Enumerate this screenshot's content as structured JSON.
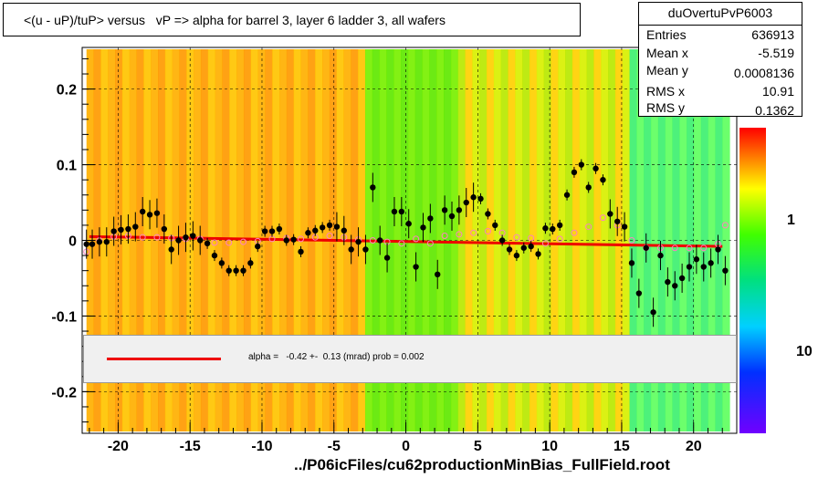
{
  "title": "<(u - uP)/tuP> versus   vP => alpha for barrel 3, layer 6 ladder 3, all wafers",
  "stats": {
    "name": "duOvertuPvP6003",
    "rows": [
      {
        "label": "Entries",
        "value": "636913"
      },
      {
        "label": "Mean x",
        "value": "-5.519"
      },
      {
        "label": "Mean y",
        "value": "0.0008136"
      },
      {
        "label": "RMS x",
        "value": "10.91"
      },
      {
        "label": "RMS y",
        "value": "0.1362"
      }
    ]
  },
  "legend": {
    "fit_text": "alpha =   -0.42 +-  0.13 (mrad) prob = 0.002",
    "line_color": "#ee0000"
  },
  "footer": "../P06icFiles/cu62productionMinBias_FullField.root",
  "colorbar": {
    "labels": [
      "1",
      "10"
    ]
  },
  "chart_data": {
    "type": "scatter",
    "xlim": [
      -22.5,
      23
    ],
    "ylim": [
      -0.255,
      0.255
    ],
    "xticks": [
      "-20",
      "-15",
      "-10",
      "-5",
      "0",
      "5",
      "10",
      "15",
      "20"
    ],
    "yticks": [
      "0.2",
      "0.1",
      "0",
      "-0.1",
      "-0.2"
    ],
    "series": [
      {
        "marker": "filled-circle",
        "color": "#000000",
        "x": [
          -22.2,
          -21.8,
          -21.3,
          -20.8,
          -20.3,
          -19.8,
          -19.3,
          -18.8,
          -18.3,
          -17.8,
          -17.3,
          -16.8,
          -16.3,
          -15.8,
          -15.3,
          -14.8,
          -14.3,
          -13.8,
          -13.3,
          -12.8,
          -12.3,
          -11.8,
          -11.3,
          -10.8,
          -10.3,
          -9.8,
          -9.3,
          -8.8,
          -8.3,
          -7.8,
          -7.3,
          -6.8,
          -6.3,
          -5.8,
          -5.3,
          -4.8,
          -4.3,
          -3.8,
          -3.3,
          -2.8,
          -2.3,
          -1.8,
          -1.3,
          -0.8,
          -0.3,
          0.2,
          0.7,
          1.2,
          1.7,
          2.2,
          2.7,
          3.2,
          3.7,
          4.2,
          4.7,
          5.2,
          5.7,
          6.2,
          6.7,
          7.2,
          7.7,
          8.2,
          8.7,
          9.2,
          9.7,
          10.2,
          10.7,
          11.2,
          11.7,
          12.2,
          12.7,
          13.2,
          13.7,
          14.2,
          14.7,
          15.2,
          15.7,
          16.2,
          16.7,
          17.2,
          17.7,
          18.2,
          18.7,
          19.2,
          19.7,
          20.2,
          20.7,
          21.2,
          21.7,
          22.2
        ],
        "y": [
          -0.005,
          -0.005,
          -0.002,
          -0.002,
          0.012,
          0.014,
          0.015,
          0.018,
          0.038,
          0.034,
          0.036,
          0.015,
          -0.012,
          0.0,
          0.004,
          0.006,
          0.0,
          -0.004,
          -0.02,
          -0.03,
          -0.04,
          -0.04,
          -0.04,
          -0.03,
          -0.008,
          0.012,
          0.012,
          0.015,
          0.0,
          0.001,
          -0.015,
          0.01,
          0.013,
          0.017,
          0.02,
          0.018,
          0.013,
          -0.012,
          -0.002,
          -0.012,
          0.07,
          0.0,
          -0.023,
          0.038,
          0.038,
          0.022,
          -0.035,
          0.017,
          0.029,
          -0.045,
          0.04,
          0.032,
          0.04,
          0.05,
          0.057,
          0.055,
          0.035,
          0.02,
          0.0,
          -0.012,
          -0.02,
          -0.01,
          -0.008,
          -0.018,
          0.016,
          0.015,
          0.02,
          0.06,
          0.09,
          0.1,
          0.07,
          0.095,
          0.08,
          0.035,
          0.025,
          0.018,
          -0.03,
          -0.07,
          -0.01,
          -0.095,
          -0.02,
          -0.055,
          -0.06,
          -0.05,
          -0.035,
          -0.025,
          -0.035,
          -0.03,
          -0.012,
          -0.04
        ]
      },
      {
        "marker": "open-circle",
        "color": "#ff80c0",
        "x": [
          -22.2,
          -21.3,
          -20.3,
          -19.3,
          -18.3,
          -17.3,
          -16.3,
          -15.3,
          -14.3,
          -13.3,
          -12.3,
          -11.3,
          -10.3,
          -9.3,
          -8.3,
          -7.3,
          -6.3,
          -5.3,
          -4.3,
          -3.3,
          -2.3,
          -1.3,
          -0.3,
          0.7,
          1.7,
          2.7,
          3.7,
          4.7,
          5.7,
          6.7,
          7.7,
          8.7,
          9.7,
          10.7,
          11.7,
          12.7,
          13.7,
          14.7,
          15.7,
          16.7,
          17.7,
          18.7,
          19.7,
          20.7,
          21.7,
          22.2
        ],
        "y": [
          -0.015,
          0.0,
          0.005,
          0.006,
          0.004,
          0.004,
          0.003,
          0.002,
          0.002,
          -0.003,
          -0.003,
          -0.002,
          -0.001,
          0.002,
          0.003,
          0.002,
          0.004,
          0.006,
          0.004,
          0.001,
          0.0,
          -0.002,
          -0.004,
          0.002,
          -0.004,
          0.006,
          0.008,
          0.01,
          0.012,
          0.01,
          0.004,
          0.003,
          -0.004,
          0.002,
          0.01,
          0.018,
          0.03,
          0.02,
          0.0,
          -0.01,
          -0.01,
          -0.01,
          -0.01,
          -0.01,
          -0.005,
          0.02
        ]
      },
      {
        "marker": "line",
        "color": "#ee0000",
        "name": "alpha fit",
        "x": [
          -22,
          22
        ],
        "y": [
          0.005,
          -0.008
        ]
      }
    ]
  }
}
